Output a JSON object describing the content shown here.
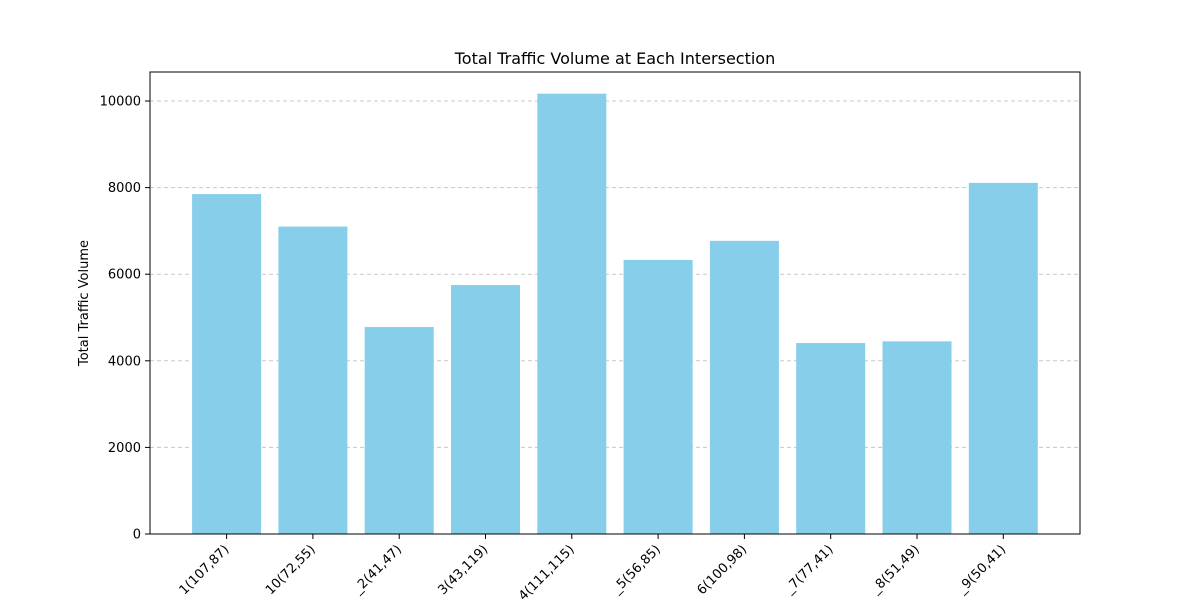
{
  "chart_data": {
    "type": "bar",
    "title": "Total Traffic Volume at Each Intersection",
    "xlabel": "",
    "ylabel": "Total Traffic Volume",
    "categories": [
      "1(107,87)",
      "10(72,55)",
      "_2(41,47)",
      "3(43,119)",
      "4(111,115)",
      "_5(56,85)",
      "6(100,98)",
      "_7(77,41)",
      "_8(51,49)",
      "_9(50,41)"
    ],
    "values": [
      7850,
      7100,
      4780,
      5750,
      10170,
      6330,
      6770,
      4410,
      4450,
      8110
    ],
    "ylim": [
      0,
      10670
    ],
    "yticks": [
      0,
      2000,
      4000,
      6000,
      8000,
      10000
    ],
    "grid": "y-dashed",
    "legend": "none",
    "bar_color": "#87ceeb"
  }
}
